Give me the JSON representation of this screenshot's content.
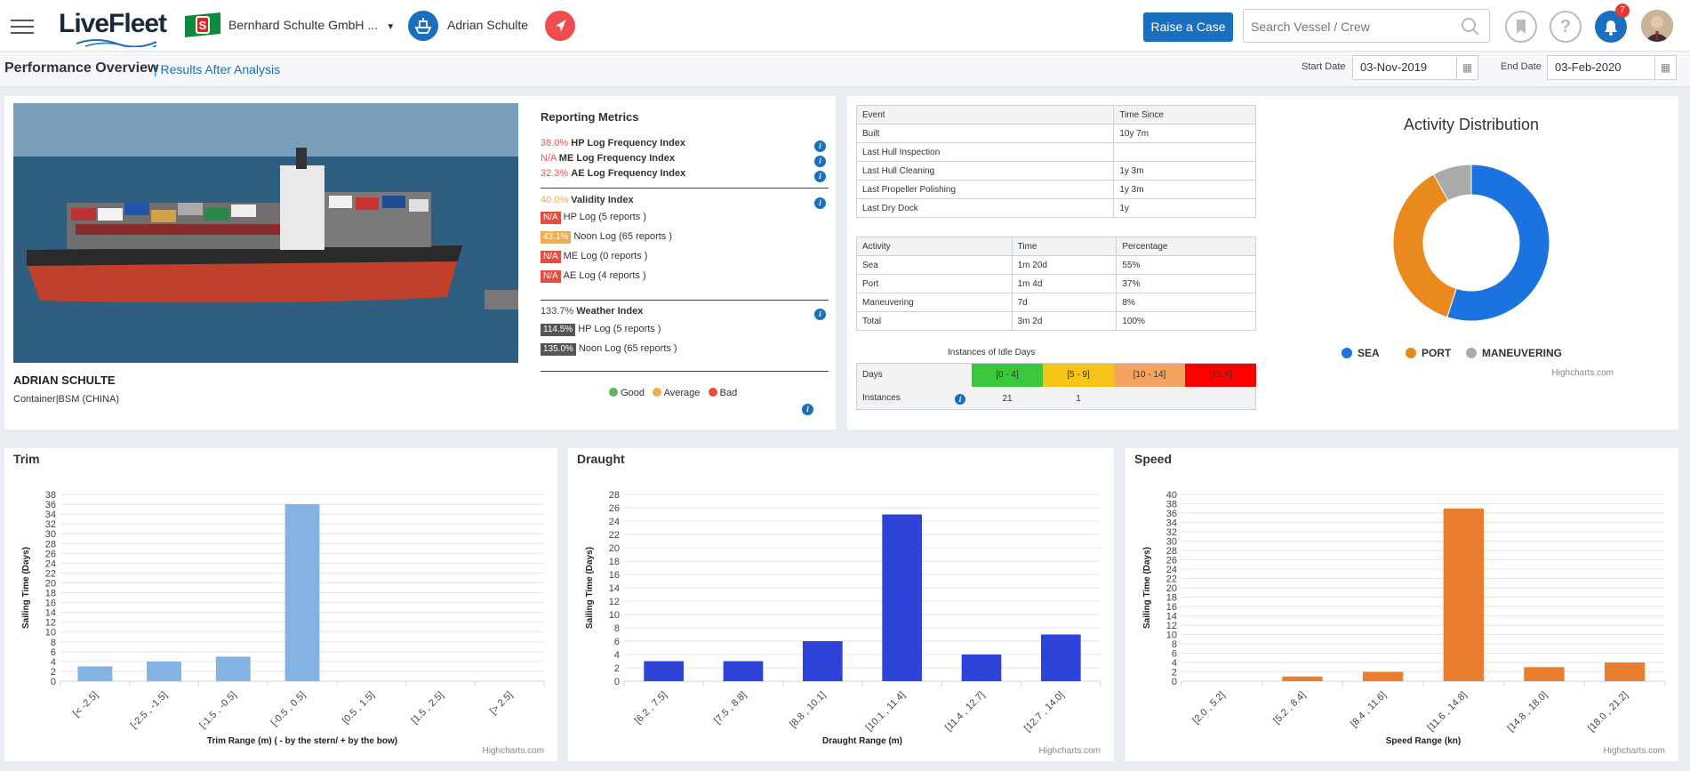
{
  "header": {
    "logo": "LiveFleet",
    "company": "Bernhard Schulte GmbH ...",
    "vessel": "Adrian Schulte",
    "raise_case": "Raise a Case",
    "search_placeholder": "Search Vessel / Crew",
    "notification_count": "7"
  },
  "subbar": {
    "title": "Performance Overview",
    "subtitle": "| Results After Analysis",
    "start_label": "Start Date",
    "start_date": "03-Nov-2019",
    "end_label": "End Date",
    "end_date": "03-Feb-2020"
  },
  "vessel_card": {
    "name": "ADRIAN SCHULTE",
    "type": "Container|BSM (CHINA)"
  },
  "metrics": {
    "title": "Reporting Metrics",
    "hp_pct": "38.0%",
    "hp_label": "HP Log Frequency Index",
    "me_pct": "N/A",
    "me_label": "ME Log Frequency Index",
    "ae_pct": "32.3%",
    "ae_label": "AE Log Frequency Index",
    "validity_pct": "40.0%",
    "validity_label": "Validity Index",
    "v_hp_tag": "N/A",
    "v_hp": "HP Log (5  reports )",
    "v_noon_tag": "43.1%",
    "v_noon": "Noon Log (65  reports )",
    "v_me_tag": "N/A",
    "v_me": "ME Log (0  reports )",
    "v_ae_tag": "N/A",
    "v_ae": "AE Log (4  reports )",
    "weather_pct": "133.7%",
    "weather_label": "Weather Index",
    "w_hp_tag": "114.5%",
    "w_hp": "HP Log (5  reports )",
    "w_noon_tag": "135.0%",
    "w_noon": "Noon Log (65  reports )",
    "legend_good": "Good",
    "legend_avg": "Average",
    "legend_bad": "Bad",
    "colors": {
      "good": "#5cb85c",
      "average": "#f0ad4e",
      "bad": "#e74c3c"
    }
  },
  "events": {
    "headers": [
      "Event",
      "Time Since"
    ],
    "rows": [
      [
        "Built",
        "10y 7m"
      ],
      [
        "Last Hull Inspection",
        ""
      ],
      [
        "Last Hull Cleaning",
        "1y 3m"
      ],
      [
        "Last Propeller Polishing",
        "1y 3m"
      ],
      [
        "Last Dry Dock",
        "1y"
      ]
    ]
  },
  "activity": {
    "headers": [
      "Activity",
      "Time",
      "Percentage"
    ],
    "rows": [
      [
        "Sea",
        "1m 20d",
        "55%"
      ],
      [
        "Port",
        "1m 4d",
        "37%"
      ],
      [
        "Maneuvering",
        "7d",
        "8%"
      ],
      [
        "Total",
        "3m 2d",
        "100%"
      ]
    ]
  },
  "idle": {
    "caption": "Instances of Idle Days",
    "days_label": "Days",
    "instances_label": "Instances",
    "ranges": [
      "[0 - 4]",
      "[5 - 9]",
      "[10 - 14]",
      "[15 +]"
    ],
    "counts": [
      "21",
      "1",
      "",
      ""
    ],
    "colors": [
      "#3cc83c",
      "#f5c518",
      "#f4a460",
      "#ff0000"
    ]
  },
  "donut": {
    "title": "Activity Distribution",
    "credit": "Highcharts.com",
    "slices": [
      {
        "name": "SEA",
        "value": 55,
        "color": "#1b73e0"
      },
      {
        "name": "PORT",
        "value": 37,
        "color": "#ea8a1e"
      },
      {
        "name": "MANEUVERING",
        "value": 8,
        "color": "#aaaaaa"
      }
    ]
  },
  "chart_data": [
    {
      "type": "bar",
      "title": "Trim",
      "xlabel": "Trim Range (m) ( - by the stern/ + by the bow)",
      "ylabel": "Sailing Time (Days)",
      "categories": [
        "[< -2.5]",
        "[-2.5 , -1.5]",
        "[-1.5 , -0.5]",
        "[-0.5 , 0.5]",
        "[0.5 , 1.5]",
        "[1.5 , 2.5]",
        "[> 2.5]"
      ],
      "values": [
        3,
        4,
        5,
        36,
        0,
        0,
        0
      ],
      "ylim": [
        0,
        38
      ],
      "ystep": 2,
      "color": "#83b2e3",
      "credit": "Highcharts.com"
    },
    {
      "type": "bar",
      "title": "Draught",
      "xlabel": "Draught Range (m)",
      "ylabel": "Sailing Time (Days)",
      "categories": [
        "[6.2 , 7.5]",
        "[7.5 , 8.8]",
        "[8.8 , 10.1]",
        "[10.1 , 11.4]",
        "[11.4 , 12.7]",
        "[12.7 , 14.0]"
      ],
      "values": [
        3,
        3,
        6,
        25,
        4,
        7
      ],
      "ylim": [
        0,
        28
      ],
      "ystep": 2,
      "color": "#2e44d8",
      "credit": "Highcharts.com"
    },
    {
      "type": "bar",
      "title": "Speed",
      "xlabel": "Speed Range (kn)",
      "ylabel": "Sailing Time (Days)",
      "categories": [
        "[2.0 , 5.2]",
        "[5.2 , 8.4]",
        "[8.4 , 11.6]",
        "[11.6 , 14.8]",
        "[14.8 , 18.0]",
        "[18.0 , 21.2]"
      ],
      "values": [
        0,
        1,
        2,
        37,
        3,
        4
      ],
      "ylim": [
        0,
        40
      ],
      "ystep": 2,
      "color": "#e97f2e",
      "credit": "Highcharts.com"
    }
  ]
}
